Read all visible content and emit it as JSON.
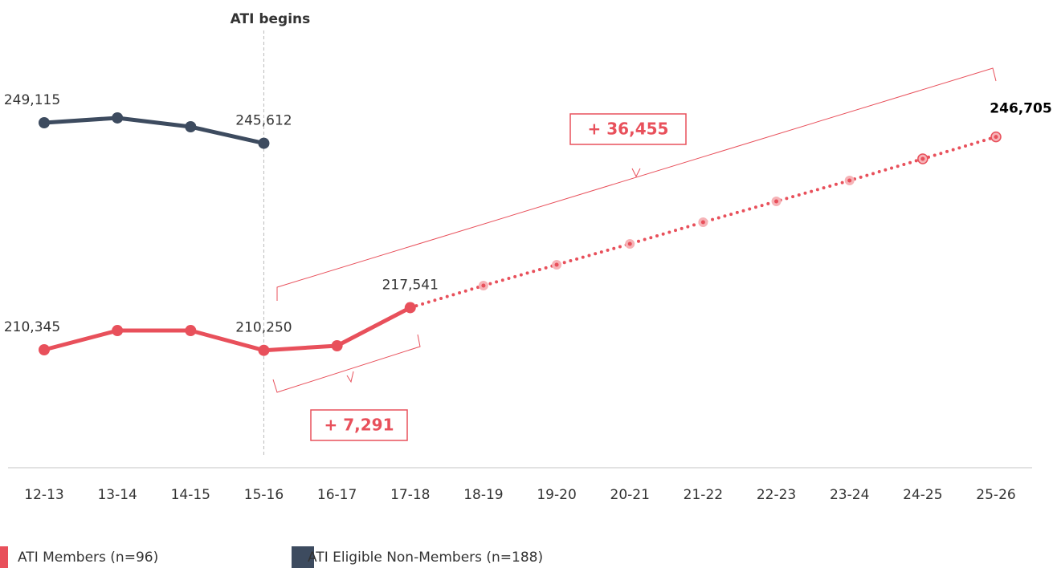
{
  "chart_data": {
    "type": "line",
    "annotations": {
      "start": "ATI begins",
      "long_gain": "+ 36,455",
      "short_gain": "+ 7,291"
    },
    "categories": [
      "12-13",
      "13-14",
      "14-15",
      "15-16",
      "16-17",
      "17-18",
      "18-19",
      "19-20",
      "20-21",
      "21-22",
      "22-23",
      "23-24",
      "24-25",
      "25-26"
    ],
    "projection_start_index": 5,
    "start_index": 3,
    "series": [
      {
        "name": "ATI Members (n=96)",
        "color": "#e8505b",
        "values": [
          210345,
          213630,
          213630,
          210250,
          211030,
          217541,
          221300,
          224870,
          228430,
          232130,
          235690,
          239250,
          242950,
          246705
        ],
        "value_labels": [
          "210,345",
          null,
          null,
          "210,250",
          null,
          "217,541",
          null,
          null,
          null,
          null,
          null,
          null,
          null,
          "246,705"
        ]
      },
      {
        "name": "ATI Eligible Non-Members (n=188)",
        "color": "#3d4b5f",
        "values": [
          249115,
          249940,
          248430,
          245612,
          null,
          null,
          null,
          null,
          null,
          null,
          null,
          null,
          null,
          null
        ],
        "value_labels": [
          "249,115",
          null,
          null,
          "245,612",
          null,
          null,
          null,
          null,
          null,
          null,
          null,
          null,
          null,
          null
        ]
      }
    ],
    "ylim": [
      200000,
      252000
    ]
  }
}
